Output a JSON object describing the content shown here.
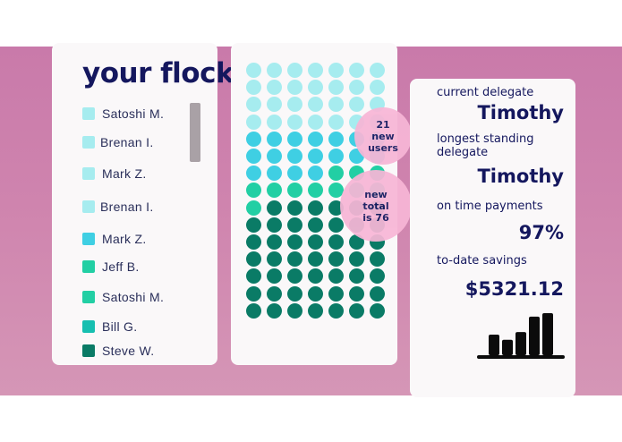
{
  "flock": {
    "title": "your flock",
    "members": [
      {
        "name": "Satoshi M.",
        "color": "#a6ecef"
      },
      {
        "name": "Brenan I.",
        "color": "#a6ecef"
      },
      {
        "name": "Mark Z.",
        "color": "#a6ecef"
      },
      {
        "name": "Brenan I.",
        "color": "#a6ecef"
      },
      {
        "name": "Mark Z.",
        "color": "#3fcfe3"
      },
      {
        "name": "Jeff B.",
        "color": "#22cfa4"
      },
      {
        "name": "Satoshi M.",
        "color": "#22cfa4"
      },
      {
        "name": "Bill G.",
        "color": "#16bfb0"
      },
      {
        "name": "Steve W.",
        "color": "#0a7b66"
      }
    ]
  },
  "flock_grid": {
    "columns": 7,
    "rows": [
      "light",
      "light",
      "light",
      "light",
      "cyan",
      "cyan",
      "cyan-teal",
      "teal",
      "teal-dark",
      "dark",
      "dark",
      "dark",
      "dark",
      "dark",
      "dark"
    ],
    "colors": {
      "light": "#a6ecef",
      "cyan": "#3fcfe3",
      "teal": "#22cfa4",
      "dark": "#0a7b66"
    }
  },
  "bubbles": {
    "new_users": [
      "21",
      "new",
      "users"
    ],
    "new_total": [
      "new",
      "total",
      "is 76"
    ]
  },
  "stats": {
    "current_delegate_label": "current delegate",
    "current_delegate": "Timothy",
    "longest_label_1": "longest standing",
    "longest_label_2": "delegate",
    "longest_delegate": "Timothy",
    "on_time_label": "on time payments",
    "on_time_value": "97%",
    "savings_label": "to-date savings",
    "savings_value": "$5321.12"
  },
  "savings_chart": {
    "type": "bar",
    "values": [
      24,
      18,
      27,
      45,
      49
    ],
    "color": "#0b0b0b"
  }
}
